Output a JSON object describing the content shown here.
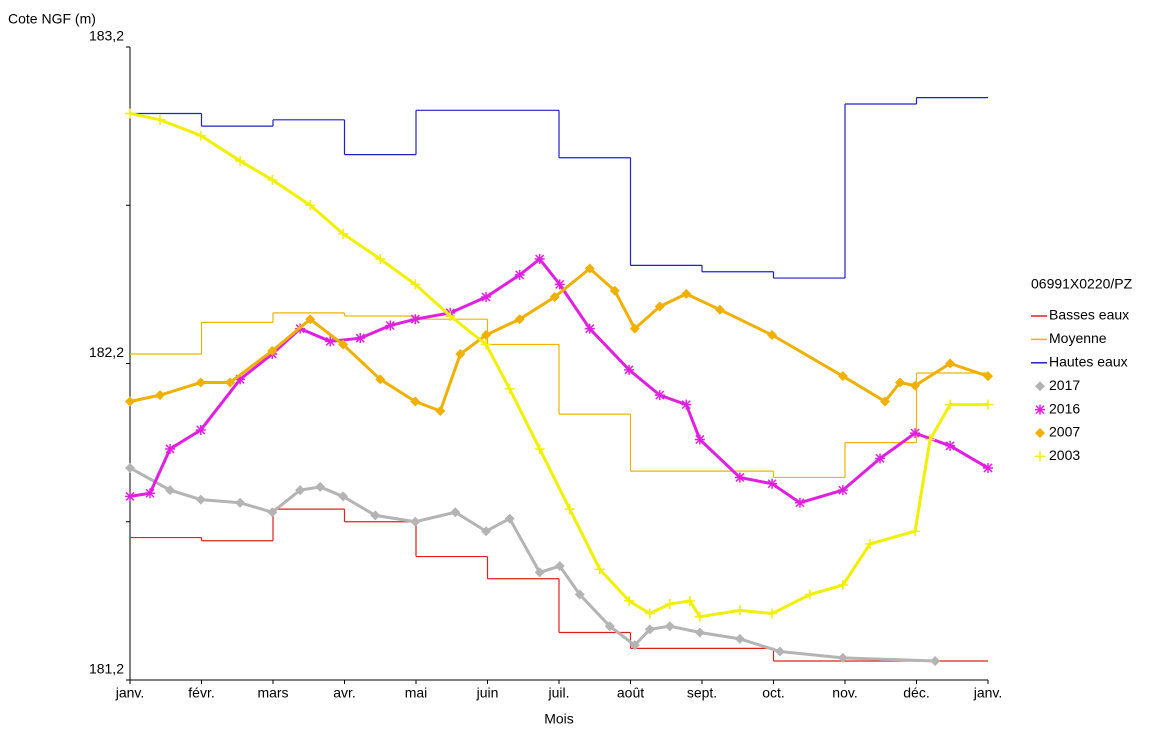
{
  "chart_data": {
    "type": "line",
    "y_label": "Cote NGF (m)",
    "x_label": "Mois",
    "legend_title": "06991X0220/PZ",
    "legend_position": "right",
    "xlim": [
      0,
      12
    ],
    "xticks": [
      {
        "value": 0,
        "label": "janv."
      },
      {
        "value": 1,
        "label": "févr."
      },
      {
        "value": 2,
        "label": "mars"
      },
      {
        "value": 3,
        "label": "avr."
      },
      {
        "value": 4,
        "label": "mai"
      },
      {
        "value": 5,
        "label": "juin"
      },
      {
        "value": 6,
        "label": "juil."
      },
      {
        "value": 7,
        "label": "août"
      },
      {
        "value": 8,
        "label": "sept."
      },
      {
        "value": 9,
        "label": "oct."
      },
      {
        "value": 10,
        "label": "nov."
      },
      {
        "value": 11,
        "label": "déc."
      },
      {
        "value": 12,
        "label": "janv."
      }
    ],
    "ylim": [
      181.2,
      183.2
    ],
    "yticks": [
      {
        "value": 181.2,
        "label": "181,2"
      },
      {
        "value": 182.2,
        "label": "182,2"
      },
      {
        "value": 183.2,
        "label": "183,2"
      }
    ],
    "minor_yticks": [
      181.7,
      182.7
    ],
    "series": [
      {
        "name": "Basses eaux",
        "color": "#e0201c",
        "step": true,
        "x": [
          0,
          1,
          2,
          3,
          4,
          5,
          6,
          7,
          8,
          9,
          10,
          11
        ],
        "values": [
          181.65,
          181.64,
          181.74,
          181.7,
          181.59,
          181.52,
          181.35,
          181.3,
          181.3,
          181.26,
          181.26,
          181.26
        ]
      },
      {
        "name": "Moyenne",
        "color": "#f0b400",
        "step": true,
        "x": [
          0,
          1,
          2,
          3,
          4,
          5,
          6,
          7,
          8,
          9,
          10,
          11
        ],
        "values": [
          182.23,
          182.33,
          182.36,
          182.35,
          182.34,
          182.26,
          182.04,
          181.86,
          181.86,
          181.84,
          181.95,
          182.17
        ]
      },
      {
        "name": "Hautes eaux",
        "color": "#2020c8",
        "step": true,
        "x": [
          0,
          1,
          2,
          3,
          4,
          5,
          6,
          7,
          8,
          9,
          10,
          11
        ],
        "values": [
          182.99,
          182.95,
          182.97,
          182.86,
          183.0,
          183.0,
          182.85,
          182.51,
          182.49,
          182.47,
          183.02,
          183.04
        ]
      },
      {
        "name": "2017",
        "color": "#b4b4b4",
        "marker": "diamond",
        "x": [
          0,
          0.56,
          0.99,
          1.54,
          1.99,
          2.38,
          2.66,
          2.98,
          3.43,
          3.99,
          4.55,
          4.98,
          5.31,
          5.73,
          6.01,
          6.29,
          6.71,
          7.06,
          7.27,
          7.55,
          7.97,
          8.53,
          9.09,
          9.97,
          11.26
        ],
        "values": [
          181.87,
          181.8,
          181.77,
          181.76,
          181.73,
          181.8,
          181.81,
          181.78,
          181.72,
          181.7,
          181.73,
          181.67,
          181.71,
          181.54,
          181.56,
          181.47,
          181.37,
          181.31,
          181.36,
          181.37,
          181.35,
          181.33,
          181.29,
          181.27,
          181.26
        ]
      },
      {
        "name": "2016",
        "color": "#e020e0",
        "marker": "star",
        "x": [
          0,
          0.28,
          0.56,
          0.99,
          1.54,
          1.99,
          2.38,
          2.8,
          3.22,
          3.64,
          3.99,
          4.48,
          4.98,
          5.45,
          5.73,
          6.01,
          6.43,
          6.98,
          7.41,
          7.78,
          7.97,
          8.53,
          8.98,
          9.37,
          9.97,
          10.49,
          10.98,
          11.47,
          12
        ],
        "values": [
          181.78,
          181.79,
          181.93,
          181.99,
          182.15,
          182.23,
          182.31,
          182.27,
          182.28,
          182.32,
          182.34,
          182.36,
          182.41,
          182.48,
          182.53,
          182.45,
          182.31,
          182.18,
          182.1,
          182.07,
          181.96,
          181.84,
          181.82,
          181.76,
          181.8,
          181.9,
          181.98,
          181.94,
          181.87
        ]
      },
      {
        "name": "2007",
        "color": "#f0b000",
        "marker": "diamond",
        "x": [
          0,
          0.42,
          0.99,
          1.4,
          1.99,
          2.52,
          2.98,
          3.5,
          3.99,
          4.34,
          4.62,
          4.98,
          5.45,
          5.94,
          6.43,
          6.78,
          7.06,
          7.41,
          7.78,
          8.25,
          8.98,
          9.97,
          10.56,
          10.77,
          10.98,
          11.47,
          12
        ],
        "values": [
          182.08,
          182.1,
          182.14,
          182.14,
          182.24,
          182.34,
          182.26,
          182.15,
          182.08,
          182.05,
          182.23,
          182.29,
          182.34,
          182.41,
          182.5,
          182.43,
          182.31,
          182.38,
          182.42,
          182.37,
          182.29,
          182.16,
          182.08,
          182.14,
          182.13,
          182.2,
          182.16
        ]
      },
      {
        "name": "2003",
        "color": "#f0f000",
        "marker": "plus",
        "x": [
          0,
          0.42,
          0.99,
          1.54,
          1.99,
          2.52,
          2.98,
          3.5,
          3.99,
          4.48,
          4.98,
          5.31,
          5.73,
          6.15,
          6.57,
          6.98,
          7.27,
          7.55,
          7.83,
          7.97,
          8.53,
          8.98,
          9.51,
          9.97,
          10.35,
          10.98,
          11.19,
          11.47,
          12
        ],
        "values": [
          182.99,
          182.97,
          182.92,
          182.84,
          182.78,
          182.7,
          182.61,
          182.53,
          182.45,
          182.35,
          182.26,
          182.12,
          181.93,
          181.74,
          181.55,
          181.45,
          181.41,
          181.44,
          181.45,
          181.4,
          181.42,
          181.41,
          181.47,
          181.5,
          181.63,
          181.67,
          181.96,
          182.07,
          182.07
        ]
      }
    ]
  }
}
